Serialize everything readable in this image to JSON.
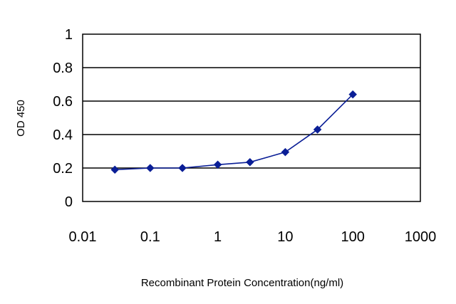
{
  "chart_data": {
    "type": "line",
    "title": "",
    "xlabel": "Recombinant Protein Concentration(ng/ml)",
    "ylabel": "OD 450",
    "x_scale": "log",
    "xlim": [
      0.01,
      1000
    ],
    "ylim": [
      0,
      1
    ],
    "x_ticks": [
      "0.01",
      "0.1",
      "1",
      "10",
      "100",
      "1000"
    ],
    "y_ticks": [
      "0",
      "0.2",
      "0.4",
      "0.6",
      "0.8",
      "1"
    ],
    "grid": "horizontal",
    "legend": "none",
    "series": [
      {
        "color": "#0a1e96",
        "marker": "diamond",
        "x": [
          0.03,
          0.1,
          0.3,
          1,
          3,
          10,
          30,
          100
        ],
        "y": [
          0.19,
          0.2,
          0.2,
          0.22,
          0.235,
          0.295,
          0.43,
          0.64
        ]
      }
    ]
  }
}
